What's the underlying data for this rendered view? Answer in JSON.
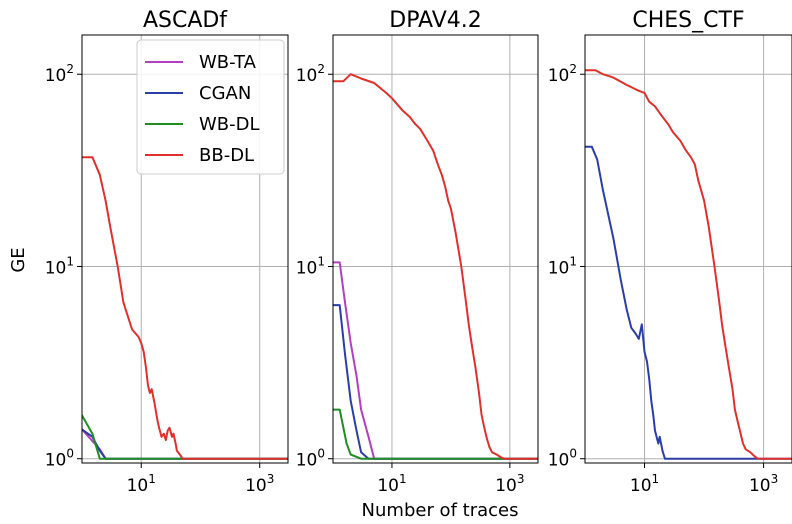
{
  "figure": {
    "xlabel": "Number of traces",
    "ylabel": "GE",
    "colors": {
      "WB-TA": "#b23fbf",
      "CGAN": "#2a3ea8",
      "WB-DL": "#1f8f24",
      "BB-DL": "#e0302b"
    },
    "legend": {
      "placement": "upper-right of first panel",
      "entries": [
        "WB-TA",
        "CGAN",
        "WB-DL",
        "BB-DL"
      ]
    }
  },
  "chart_data": [
    {
      "type": "line",
      "title": "ASCADf",
      "xscale": "log",
      "yscale": "log",
      "xlim": [
        1,
        3000
      ],
      "ylim": [
        0.95,
        160
      ],
      "x_tick_labels": [
        "10^1",
        "10^3"
      ],
      "y_tick_labels": [
        "10^0",
        "10^1",
        "10^2"
      ],
      "grid": true,
      "series": [
        {
          "name": "WB-TA",
          "x": [
            1,
            2,
            2.5,
            3000
          ],
          "y": [
            1.42,
            1.12,
            1.0,
            1.0
          ]
        },
        {
          "name": "CGAN",
          "x": [
            1,
            1.5,
            2,
            2.5,
            3000
          ],
          "y": [
            1.42,
            1.3,
            1.1,
            1.0,
            1.0
          ]
        },
        {
          "name": "WB-DL",
          "x": [
            1,
            1.5,
            2,
            3000
          ],
          "y": [
            1.68,
            1.35,
            1.0,
            1.0
          ]
        },
        {
          "name": "BB-DL",
          "x": [
            1,
            1.5,
            2,
            2.5,
            3,
            4,
            5,
            7,
            9,
            10,
            11,
            12,
            13,
            14,
            15,
            17,
            18,
            19,
            20,
            22,
            24,
            26,
            28,
            30,
            33,
            35,
            38,
            40,
            45,
            50,
            3000
          ],
          "y": [
            37,
            37,
            30,
            22,
            16,
            10,
            6.5,
            4.7,
            4.3,
            4.0,
            3.6,
            3.0,
            2.4,
            2.2,
            2.3,
            1.9,
            1.7,
            1.55,
            1.45,
            1.3,
            1.35,
            1.25,
            1.4,
            1.45,
            1.3,
            1.35,
            1.2,
            1.1,
            1.05,
            1.0,
            1.0
          ]
        }
      ]
    },
    {
      "type": "line",
      "title": "DPAV4.2",
      "xscale": "log",
      "yscale": "log",
      "xlim": [
        1,
        3000
      ],
      "ylim": [
        0.95,
        160
      ],
      "x_tick_labels": [
        "10^1",
        "10^3"
      ],
      "y_tick_labels": [
        "10^0",
        "10^1",
        "10^2"
      ],
      "grid": true,
      "series": [
        {
          "name": "WB-TA",
          "x": [
            1,
            1.3,
            1.6,
            2,
            2.5,
            3,
            4,
            5,
            3000
          ],
          "y": [
            10.5,
            10.5,
            6.5,
            4.0,
            2.7,
            1.8,
            1.3,
            1.0,
            1.0
          ]
        },
        {
          "name": "CGAN",
          "x": [
            1,
            1.3,
            1.6,
            2,
            2.5,
            3,
            4,
            3000
          ],
          "y": [
            6.3,
            6.3,
            3.5,
            2.0,
            1.4,
            1.08,
            1.0,
            1.0
          ]
        },
        {
          "name": "WB-DL",
          "x": [
            1,
            1.3,
            1.7,
            2,
            3,
            3000
          ],
          "y": [
            1.8,
            1.8,
            1.2,
            1.05,
            1.0,
            1.0
          ]
        },
        {
          "name": "BB-DL",
          "x": [
            1,
            1.5,
            2,
            3,
            5,
            8,
            10,
            15,
            20,
            25,
            30,
            40,
            50,
            60,
            70,
            80,
            90,
            100,
            120,
            150,
            180,
            200,
            230,
            260,
            300,
            330,
            360,
            400,
            450,
            500,
            600,
            700,
            800,
            1000,
            1500,
            3000
          ],
          "y": [
            92,
            92,
            100,
            95,
            90,
            80,
            75,
            65,
            60,
            55,
            52,
            45,
            40,
            34,
            30,
            26,
            22,
            20,
            15,
            10,
            6.5,
            5.0,
            3.8,
            3.0,
            2.2,
            1.7,
            1.5,
            1.3,
            1.15,
            1.08,
            1.05,
            1.02,
            1.0,
            1.0,
            1.0,
            1.0
          ]
        }
      ]
    },
    {
      "type": "line",
      "title": "CHES_CTF",
      "xscale": "log",
      "yscale": "log",
      "xlim": [
        1,
        3000
      ],
      "ylim": [
        0.95,
        160
      ],
      "x_tick_labels": [
        "10^1",
        "10^3"
      ],
      "y_tick_labels": [
        "10^0",
        "10^1",
        "10^2"
      ],
      "grid": true,
      "series": [
        {
          "name": "CGAN",
          "x": [
            1,
            1.3,
            1.6,
            2,
            3,
            4,
            5,
            6,
            7,
            8,
            9,
            10,
            11,
            12,
            13,
            14,
            15,
            17,
            18,
            20,
            22,
            25,
            3000
          ],
          "y": [
            42,
            42,
            36,
            25,
            14,
            8.5,
            6.0,
            4.8,
            4.5,
            4.2,
            5.0,
            3.6,
            3.2,
            2.6,
            2.0,
            1.7,
            1.4,
            1.2,
            1.3,
            1.1,
            1.0,
            1.0,
            1.0
          ]
        },
        {
          "name": "BB-DL",
          "x": [
            1,
            1.5,
            2,
            3,
            5,
            8,
            10,
            12,
            15,
            20,
            25,
            30,
            40,
            50,
            60,
            70,
            80,
            100,
            120,
            150,
            180,
            200,
            230,
            260,
            300,
            330,
            360,
            400,
            450,
            500,
            600,
            700,
            800,
            1000,
            1500,
            3000
          ],
          "y": [
            105,
            105,
            100,
            96,
            88,
            82,
            80,
            72,
            68,
            60,
            55,
            50,
            45,
            40,
            37,
            34,
            28,
            22,
            16,
            10,
            6.5,
            5.0,
            3.8,
            3.0,
            2.3,
            1.8,
            1.6,
            1.4,
            1.2,
            1.12,
            1.08,
            1.03,
            1.0,
            1.0,
            1.0,
            1.0
          ]
        }
      ]
    }
  ]
}
